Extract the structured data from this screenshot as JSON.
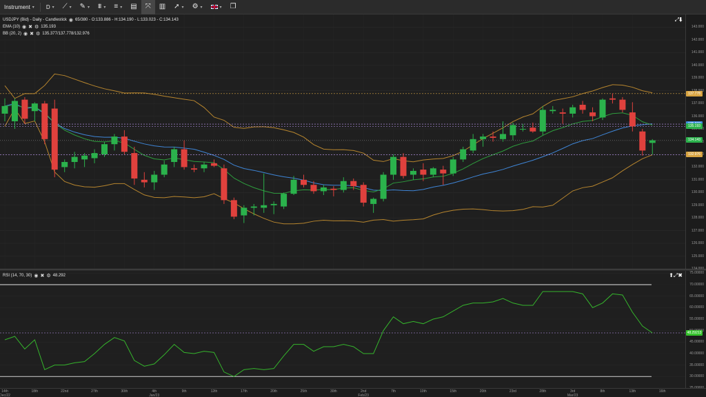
{
  "toolbar": {
    "instrument_label": "Instrument",
    "timeframe_label": "D"
  },
  "main_legend": {
    "title": "USDJPY (Bid) - Daily - Candlestick",
    "ohlc": "65/380 - O:133.886 - H:134.190 - L:133.023 - C:134.143",
    "ema_label": "EMA (10)",
    "ema_value": "135.193",
    "bb_label": "BB (20, 2)",
    "bb_value": "135.377/137.778/132.976"
  },
  "rsi_legend": {
    "label": "RSI (14, 70, 30)",
    "value": "48.292"
  },
  "price_axis": {
    "ticks": [
      "143.000",
      "142.000",
      "141.000",
      "140.000",
      "139.000",
      "138.000",
      "137.000",
      "136.000",
      "135.000",
      "134.000",
      "133.000",
      "132.000",
      "131.000",
      "130.000",
      "129.000",
      "128.000",
      "127.000",
      "126.000",
      "125.000",
      "124.000"
    ],
    "badges": [
      {
        "text": "137.778",
        "color": "#d9a441"
      },
      {
        "text": "135.377",
        "color": "#3f8fe0"
      },
      {
        "text": "135.193",
        "color": "#2bb24c"
      },
      {
        "text": "134.143",
        "color": "#2bb24c"
      },
      {
        "text": "132.976",
        "color": "#d9a441"
      }
    ]
  },
  "rsi_axis": {
    "ticks": [
      "75.00000",
      "70.00000",
      "65.00000",
      "60.00000",
      "55.00000",
      "50.00000",
      "45.00000",
      "40.00000",
      "35.00000",
      "30.00000",
      "25.00000"
    ],
    "badge": "48.29213"
  },
  "date_axis": {
    "ticks": [
      "14th",
      "18th",
      "22nd",
      "27th",
      "30th",
      "4th",
      "9th",
      "12th",
      "17th",
      "20th",
      "25th",
      "30th",
      "2nd",
      "7th",
      "10th",
      "15th",
      "20th",
      "23rd",
      "28th",
      "3rd",
      "8th",
      "13th",
      "16th"
    ],
    "month_labels": [
      "Dec/22",
      "Jan/23",
      "Feb/23",
      "Mar/23"
    ]
  },
  "colors": {
    "bull": "#2bb24c",
    "bear": "#e0413d",
    "ema": "#2e9e3e",
    "bb_band": "#b8862e",
    "bb_mid": "#3f86d8",
    "rsi": "#35b52c"
  },
  "chart_data": {
    "type": "candlestick",
    "title": "USDJPY (Bid) - Daily - Candlestick",
    "ylim": [
      124,
      144
    ],
    "candles": [
      {
        "o": 136.2,
        "h": 137.4,
        "l": 135.6,
        "c": 136.8
      },
      {
        "o": 135.6,
        "h": 137.4,
        "l": 135.0,
        "c": 137.2
      },
      {
        "o": 137.3,
        "h": 137.5,
        "l": 135.4,
        "c": 135.8
      },
      {
        "o": 136.4,
        "h": 137.1,
        "l": 135.6,
        "c": 137.0
      },
      {
        "o": 137.0,
        "h": 137.2,
        "l": 133.8,
        "c": 134.2
      },
      {
        "o": 136.6,
        "h": 137.3,
        "l": 131.2,
        "c": 131.8
      },
      {
        "o": 132.0,
        "h": 132.6,
        "l": 131.6,
        "c": 132.4
      },
      {
        "o": 132.4,
        "h": 133.2,
        "l": 131.9,
        "c": 132.8
      },
      {
        "o": 132.6,
        "h": 133.1,
        "l": 132.0,
        "c": 132.9
      },
      {
        "o": 132.7,
        "h": 133.4,
        "l": 132.3,
        "c": 133.1
      },
      {
        "o": 133.0,
        "h": 134.0,
        "l": 132.8,
        "c": 133.8
      },
      {
        "o": 133.8,
        "h": 134.6,
        "l": 133.3,
        "c": 134.4
      },
      {
        "o": 134.4,
        "h": 134.9,
        "l": 133.0,
        "c": 133.2
      },
      {
        "o": 133.1,
        "h": 133.6,
        "l": 130.6,
        "c": 131.1
      },
      {
        "o": 131.0,
        "h": 131.6,
        "l": 130.4,
        "c": 130.8
      },
      {
        "o": 130.8,
        "h": 131.7,
        "l": 130.2,
        "c": 131.4
      },
      {
        "o": 131.4,
        "h": 132.5,
        "l": 131.2,
        "c": 132.2
      },
      {
        "o": 132.4,
        "h": 133.6,
        "l": 132.0,
        "c": 133.4
      },
      {
        "o": 133.4,
        "h": 134.1,
        "l": 131.8,
        "c": 132.0
      },
      {
        "o": 131.9,
        "h": 132.2,
        "l": 131.6,
        "c": 131.8
      },
      {
        "o": 131.9,
        "h": 132.4,
        "l": 131.6,
        "c": 132.2
      },
      {
        "o": 132.3,
        "h": 132.6,
        "l": 132.0,
        "c": 132.1
      },
      {
        "o": 131.9,
        "h": 132.2,
        "l": 129.1,
        "c": 129.4
      },
      {
        "o": 129.4,
        "h": 129.6,
        "l": 127.9,
        "c": 128.1
      },
      {
        "o": 128.2,
        "h": 129.0,
        "l": 127.6,
        "c": 128.8
      },
      {
        "o": 128.8,
        "h": 129.1,
        "l": 128.2,
        "c": 128.9
      },
      {
        "o": 128.8,
        "h": 131.5,
        "l": 128.4,
        "c": 129.0
      },
      {
        "o": 129.0,
        "h": 129.3,
        "l": 128.3,
        "c": 129.1
      },
      {
        "o": 128.9,
        "h": 130.0,
        "l": 128.7,
        "c": 129.9
      },
      {
        "o": 129.9,
        "h": 131.3,
        "l": 129.8,
        "c": 131.0
      },
      {
        "o": 131.0,
        "h": 131.4,
        "l": 130.4,
        "c": 130.6
      },
      {
        "o": 130.6,
        "h": 130.9,
        "l": 129.9,
        "c": 130.1
      },
      {
        "o": 130.1,
        "h": 130.6,
        "l": 129.8,
        "c": 130.4
      },
      {
        "o": 130.3,
        "h": 130.5,
        "l": 129.7,
        "c": 130.2
      },
      {
        "o": 130.2,
        "h": 131.2,
        "l": 130.0,
        "c": 130.9
      },
      {
        "o": 130.9,
        "h": 131.1,
        "l": 130.2,
        "c": 130.5
      },
      {
        "o": 130.6,
        "h": 130.8,
        "l": 128.9,
        "c": 129.2
      },
      {
        "o": 129.1,
        "h": 129.6,
        "l": 128.4,
        "c": 129.5
      },
      {
        "o": 129.5,
        "h": 131.6,
        "l": 129.3,
        "c": 131.4
      },
      {
        "o": 131.4,
        "h": 133.0,
        "l": 131.0,
        "c": 132.8
      },
      {
        "o": 132.8,
        "h": 133.1,
        "l": 131.1,
        "c": 131.3
      },
      {
        "o": 131.4,
        "h": 131.9,
        "l": 131.0,
        "c": 131.7
      },
      {
        "o": 131.8,
        "h": 132.3,
        "l": 130.9,
        "c": 131.4
      },
      {
        "o": 131.4,
        "h": 132.0,
        "l": 131.2,
        "c": 131.9
      },
      {
        "o": 131.8,
        "h": 132.1,
        "l": 130.6,
        "c": 131.5
      },
      {
        "o": 131.5,
        "h": 132.8,
        "l": 131.3,
        "c": 132.6
      },
      {
        "o": 132.6,
        "h": 133.6,
        "l": 132.4,
        "c": 133.4
      },
      {
        "o": 133.3,
        "h": 134.6,
        "l": 133.1,
        "c": 134.2
      },
      {
        "o": 134.2,
        "h": 134.6,
        "l": 133.6,
        "c": 134.4
      },
      {
        "o": 134.4,
        "h": 134.8,
        "l": 134.0,
        "c": 134.3
      },
      {
        "o": 134.2,
        "h": 135.6,
        "l": 134.0,
        "c": 134.6
      },
      {
        "o": 134.5,
        "h": 135.5,
        "l": 134.1,
        "c": 135.3
      },
      {
        "o": 135.0,
        "h": 135.4,
        "l": 134.8,
        "c": 135.0
      },
      {
        "o": 135.1,
        "h": 135.5,
        "l": 134.7,
        "c": 134.8
      },
      {
        "o": 134.8,
        "h": 136.8,
        "l": 134.5,
        "c": 136.5
      },
      {
        "o": 136.4,
        "h": 136.8,
        "l": 136.2,
        "c": 136.5
      },
      {
        "o": 136.3,
        "h": 136.6,
        "l": 135.4,
        "c": 136.2
      },
      {
        "o": 136.2,
        "h": 136.9,
        "l": 135.9,
        "c": 136.7
      },
      {
        "o": 136.9,
        "h": 137.2,
        "l": 136.2,
        "c": 136.5
      },
      {
        "o": 136.3,
        "h": 136.7,
        "l": 135.6,
        "c": 136.0
      },
      {
        "o": 135.9,
        "h": 137.4,
        "l": 135.7,
        "c": 137.3
      },
      {
        "o": 137.4,
        "h": 137.8,
        "l": 137.0,
        "c": 137.3
      },
      {
        "o": 137.3,
        "h": 137.5,
        "l": 136.3,
        "c": 136.5
      },
      {
        "o": 136.3,
        "h": 137.1,
        "l": 134.8,
        "c": 135.2
      },
      {
        "o": 134.8,
        "h": 135.0,
        "l": 132.9,
        "c": 133.3
      },
      {
        "o": 133.9,
        "h": 134.2,
        "l": 133.0,
        "c": 134.1
      }
    ],
    "rsi": [
      46,
      47.5,
      42,
      46,
      33,
      35,
      35,
      36,
      36.5,
      40,
      44,
      47,
      45.5,
      37,
      34.5,
      35.5,
      39.5,
      44,
      40.5,
      40,
      41,
      40.5,
      32,
      30,
      33,
      33.5,
      33,
      33.5,
      39,
      44,
      44,
      41,
      43,
      43,
      44,
      43,
      40,
      40,
      50,
      56,
      53,
      54,
      53,
      55,
      56,
      58.5,
      61,
      62,
      62,
      62.5,
      64,
      62,
      61,
      61,
      67,
      67,
      67,
      67,
      66,
      60,
      62,
      66,
      65.5,
      58,
      52,
      49
    ],
    "rsi_levels": [
      70,
      30
    ]
  }
}
